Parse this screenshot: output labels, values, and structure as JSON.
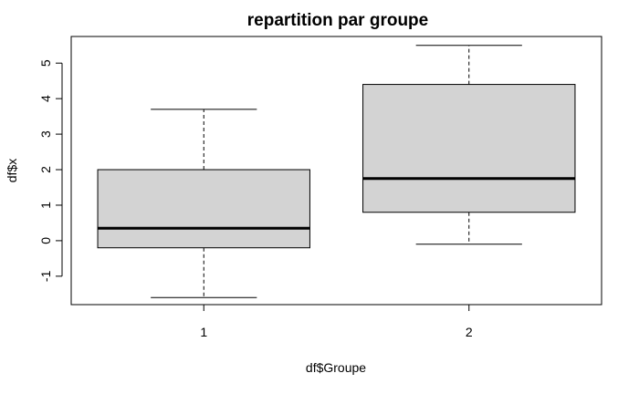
{
  "chart_data": {
    "type": "boxplot",
    "title": "repartition par groupe",
    "xlabel": "df$Groupe",
    "ylabel": "df$x",
    "categories": [
      "1",
      "2"
    ],
    "boxes": [
      {
        "category": "1",
        "whisker_low": -1.6,
        "q1": -0.2,
        "median": 0.35,
        "q3": 2.0,
        "whisker_high": 3.7
      },
      {
        "category": "2",
        "whisker_low": -0.1,
        "q1": 0.8,
        "median": 1.75,
        "q3": 4.4,
        "whisker_high": 5.5
      }
    ],
    "yticks": [
      "-1",
      "0",
      "1",
      "2",
      "3",
      "4",
      "5"
    ],
    "ylim": [
      -1.8,
      5.75
    ],
    "grid": false,
    "box_fill": "#d3d3d3",
    "line_color": "#000000"
  }
}
